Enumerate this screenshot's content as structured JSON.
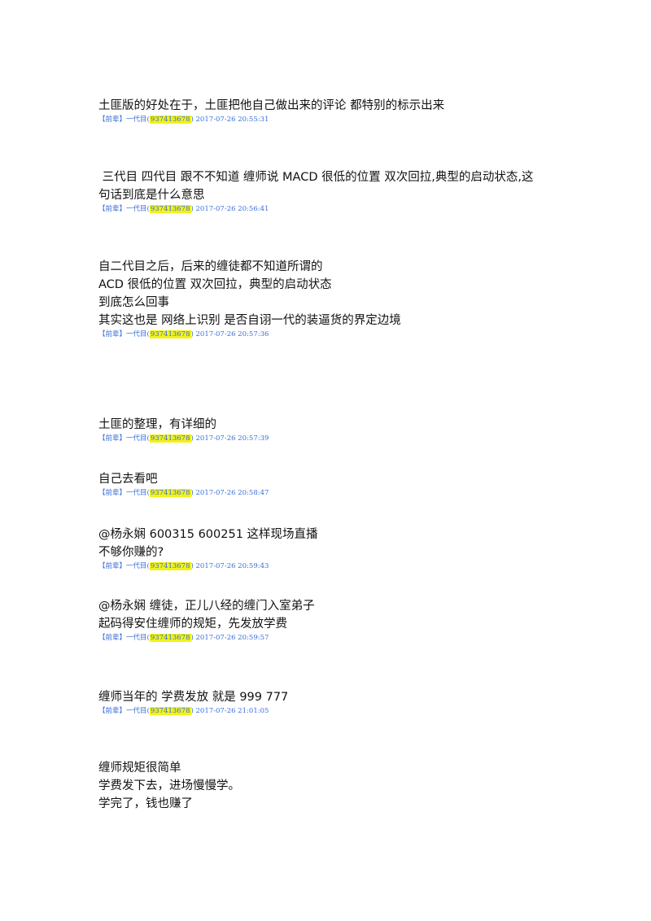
{
  "posts": [
    {
      "lines": [
        "土匪版的好处在于，土匪把他自己做出来的评论 都特别的标示出来"
      ],
      "meta": {
        "prefix": "【前辈】一代目(",
        "qq": "937413678",
        "time": ") 2017-07-26 20:55:31"
      }
    },
    {
      "lines": [
        " 三代目 四代目 跟不不知道 缠师说 MACD 很低的位置 双次回拉,典型的启动状态,这",
        "句话到底是什么意思"
      ],
      "meta": {
        "prefix": "【前辈】一代目(",
        "qq": "937413678",
        "time": ") 2017-07-26 20:56:41"
      }
    },
    {
      "lines": [
        "自二代目之后，后来的缠徒都不知道所谓的",
        "ACD 很低的位置 双次回拉，典型的启动状态",
        "",
        "到底怎么回事",
        "",
        "其实这也是 网络上识别 是否自诩一代的装逼货的界定边境"
      ],
      "meta": {
        "prefix": "【前辈】一代目(",
        "qq": "937413678",
        "time": ") 2017-07-26 20:57:36"
      }
    },
    {
      "lines": [
        "土匪的整理，有详细的"
      ],
      "meta": {
        "prefix": "【前辈】一代目(",
        "qq": "937413678",
        "time": ") 2017-07-26 20:57:39"
      }
    },
    {
      "lines": [
        "自己去看吧"
      ],
      "meta": {
        "prefix": "【前辈】一代目(",
        "qq": "937413678",
        "time": ") 2017-07-26 20:58:47"
      }
    },
    {
      "lines": [
        "@杨永娴 600315 600251 这样现场直播",
        "不够你赚的?"
      ],
      "meta": {
        "prefix": "【前辈】一代目(",
        "qq": "937413678",
        "time": ") 2017-07-26 20:59:43"
      }
    },
    {
      "lines": [
        "@杨永娴 缠徒，正儿八经的缠门入室弟子",
        "",
        "起码得安住缠师的规矩，先发放学费"
      ],
      "meta": {
        "prefix": "【前辈】一代目(",
        "qq": "937413678",
        "time": ") 2017-07-26 20:59:57"
      }
    },
    {
      "lines": [
        "缠师当年的 学费发放 就是 999 777"
      ],
      "meta": {
        "prefix": "【前辈】一代目(",
        "qq": "937413678",
        "time": ") 2017-07-26 21:01:05"
      }
    },
    {
      "lines": [
        "缠师规矩很简单",
        "学费发下去，进场慢慢学。",
        "",
        "学完了，钱也赚了"
      ],
      "meta": null
    }
  ]
}
